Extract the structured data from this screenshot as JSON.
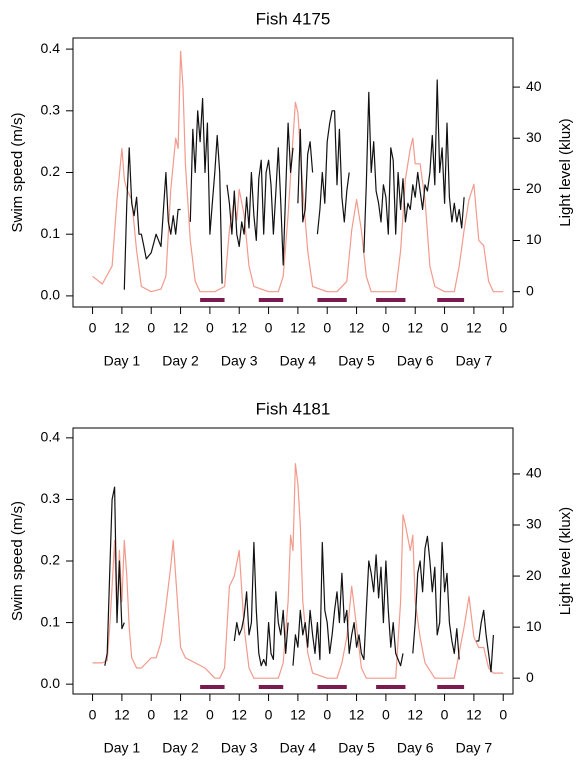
{
  "chart_data": [
    {
      "type": "line",
      "title": "Fish 4175",
      "ylabel": "Swim speed (m/s)",
      "y2label": "Light level (klux)",
      "xlim": [
        -8,
        172
      ],
      "xticks": [
        0,
        12,
        {
          "value": 24,
          "label": "0"
        },
        {
          "value": 36,
          "label": "12"
        },
        {
          "value": 48,
          "label": "0"
        },
        {
          "value": 60,
          "label": "12"
        },
        {
          "value": 72,
          "label": "0"
        },
        {
          "value": 84,
          "label": "12"
        },
        {
          "value": 96,
          "label": "0"
        },
        {
          "value": 108,
          "label": "12"
        },
        {
          "value": 120,
          "label": "0"
        },
        {
          "value": 132,
          "label": "12"
        },
        {
          "value": 144,
          "label": "0"
        },
        {
          "value": 156,
          "label": "12"
        },
        {
          "value": 168,
          "label": "0"
        }
      ],
      "day_ticks": [
        {
          "value": 12,
          "label": "Day 1"
        },
        {
          "value": 36,
          "label": "Day 2"
        },
        {
          "value": 60,
          "label": "Day 3"
        },
        {
          "value": 84,
          "label": "Day 4"
        },
        {
          "value": 108,
          "label": "Day 5"
        },
        {
          "value": 132,
          "label": "Day 6"
        },
        {
          "value": 156,
          "label": "Day 7"
        }
      ],
      "ylim": [
        -0.018,
        0.418
      ],
      "yticks": [
        {
          "value": 0,
          "label": "0.0"
        },
        0.1,
        0.2,
        0.3,
        0.4
      ],
      "y2lim": [
        -3,
        49.6
      ],
      "y2ticks": [
        0,
        10,
        20,
        30,
        40
      ],
      "night_bars": [
        [
          44,
          54
        ],
        [
          68,
          78
        ],
        [
          92,
          104
        ],
        [
          116,
          128
        ],
        [
          141,
          152
        ]
      ],
      "night_color": "#7b1a4e",
      "series": [
        {
          "color": "#f29a8c",
          "axis": "y2",
          "x": [
            0,
            4,
            8,
            10,
            12,
            13,
            14,
            16,
            18,
            20,
            24,
            28,
            30,
            32,
            34,
            35,
            36,
            37,
            38,
            40,
            42,
            44,
            50,
            54,
            56,
            58,
            59,
            60,
            62,
            64,
            66,
            72,
            76,
            78,
            80,
            82,
            83,
            84,
            86,
            88,
            90,
            96,
            100,
            104,
            106,
            108,
            110,
            112,
            114,
            120,
            124,
            126,
            128,
            130,
            131,
            132,
            134,
            136,
            138,
            140,
            144,
            148,
            150,
            152,
            154,
            156,
            158,
            160,
            162,
            164,
            168
          ],
          "values": [
            3,
            1.5,
            5,
            18,
            28,
            22,
            20,
            18,
            8,
            1,
            0,
            0.5,
            3,
            20,
            30,
            28,
            47,
            40,
            25,
            10,
            2,
            0,
            0,
            1,
            12,
            18,
            14,
            20,
            15,
            5,
            1,
            0,
            0,
            3,
            15,
            30,
            37,
            35,
            20,
            8,
            1,
            0,
            0,
            2,
            12,
            18,
            12,
            3,
            0,
            0,
            0,
            8,
            22,
            28,
            30,
            25,
            25,
            18,
            5,
            1,
            0,
            0,
            5,
            12,
            18,
            21,
            10,
            9,
            2,
            0,
            0
          ]
        },
        {
          "color": "#111111",
          "axis": "y",
          "x": [
            13,
            14,
            15,
            16,
            17,
            18,
            19,
            20,
            21,
            22,
            24,
            26,
            28,
            30,
            31,
            32,
            33,
            34,
            35,
            36,
            38,
            40,
            41,
            42,
            43,
            44,
            45,
            46,
            47,
            48,
            49,
            50,
            51,
            52,
            53,
            54,
            55,
            56,
            57,
            58,
            59,
            60,
            61,
            62,
            63,
            64,
            65,
            66,
            67,
            68,
            69,
            70,
            71,
            72,
            73,
            74,
            75,
            76,
            77,
            78,
            79,
            80,
            81,
            82,
            83,
            84,
            85,
            86,
            87,
            88,
            89,
            90,
            91,
            92,
            93,
            94,
            95,
            96,
            97,
            98,
            99,
            100,
            101,
            102,
            103,
            104,
            105,
            106,
            111,
            112,
            113,
            114,
            115,
            116,
            117,
            118,
            119,
            120,
            121,
            122,
            123,
            124,
            125,
            126,
            127,
            128,
            129,
            130,
            131,
            132,
            133,
            134,
            135,
            136,
            137,
            138,
            139,
            140,
            141,
            142,
            143,
            144,
            145,
            146,
            147,
            148,
            149,
            150,
            151,
            152
          ],
          "values": [
            0.01,
            0.15,
            0.24,
            0.15,
            0.13,
            0.16,
            0.1,
            0.1,
            0.08,
            0.06,
            0.07,
            0.1,
            0.08,
            0.2,
            0.12,
            0.1,
            0.13,
            0.1,
            0.14,
            0.14,
            null,
            0.12,
            0.27,
            0.2,
            0.3,
            0.25,
            0.32,
            0.2,
            0.28,
            0.1,
            0.15,
            0.2,
            0.26,
            0.2,
            0.02,
            null,
            0.18,
            0.15,
            0.1,
            0.17,
            0.1,
            0.08,
            0.12,
            0.1,
            0.16,
            0.11,
            0.2,
            0.13,
            0.09,
            0.19,
            0.22,
            0.1,
            0.2,
            0.22,
            0.18,
            0.1,
            0.17,
            0.24,
            0.15,
            0.05,
            0.17,
            0.28,
            0.2,
            0.24,
            null,
            0.15,
            0.27,
            0.12,
            0.14,
            0.23,
            0.25,
            0.2,
            null,
            0.1,
            0.14,
            0.2,
            0.15,
            0.25,
            0.28,
            0.3,
            0.3,
            0.18,
            0.27,
            0.16,
            0.12,
            0.17,
            0.2,
            null,
            0.07,
            0.18,
            0.33,
            0.2,
            0.25,
            0.17,
            0.15,
            0.12,
            0.18,
            0.16,
            0.1,
            0.24,
            0.22,
            0.1,
            0.2,
            0.14,
            0.19,
            0.12,
            0.15,
            0.14,
            0.18,
            0.16,
            0.2,
            0.17,
            0.14,
            0.18,
            0.17,
            0.2,
            0.26,
            0.18,
            0.35,
            0.2,
            0.24,
            0.15,
            0.28,
            0.16,
            0.12,
            0.15,
            0.12,
            0.14,
            0.11,
            0.16
          ]
        }
      ]
    },
    {
      "type": "line",
      "title": "Fish 4181",
      "ylabel": "Swim speed (m/s)",
      "y2label": "Light level (klux)",
      "xlim": [
        -8,
        172
      ],
      "xticks": [
        0,
        12,
        {
          "value": 24,
          "label": "0"
        },
        {
          "value": 36,
          "label": "12"
        },
        {
          "value": 48,
          "label": "0"
        },
        {
          "value": 60,
          "label": "12"
        },
        {
          "value": 72,
          "label": "0"
        },
        {
          "value": 84,
          "label": "12"
        },
        {
          "value": 96,
          "label": "0"
        },
        {
          "value": 108,
          "label": "12"
        },
        {
          "value": 120,
          "label": "0"
        },
        {
          "value": 132,
          "label": "12"
        },
        {
          "value": 144,
          "label": "0"
        },
        {
          "value": 156,
          "label": "12"
        },
        {
          "value": 168,
          "label": "0"
        }
      ],
      "day_ticks": [
        {
          "value": 12,
          "label": "Day 1"
        },
        {
          "value": 36,
          "label": "Day 2"
        },
        {
          "value": 60,
          "label": "Day 3"
        },
        {
          "value": 84,
          "label": "Day 4"
        },
        {
          "value": 108,
          "label": "Day 5"
        },
        {
          "value": 132,
          "label": "Day 6"
        },
        {
          "value": 156,
          "label": "Day 7"
        }
      ],
      "ylim": [
        -0.016,
        0.416
      ],
      "yticks": [
        {
          "value": 0,
          "label": "0.0"
        },
        0.1,
        0.2,
        0.3,
        0.4
      ],
      "y2lim": [
        -3.1,
        49
      ],
      "y2ticks": [
        0,
        10,
        20,
        30,
        40
      ],
      "night_bars": [
        [
          44,
          54
        ],
        [
          68,
          78
        ],
        [
          92,
          104
        ],
        [
          116,
          128
        ],
        [
          141,
          152
        ]
      ],
      "night_color": "#7b1a4e",
      "series": [
        {
          "color": "#f29a8c",
          "axis": "y2",
          "x": [
            0,
            4,
            6,
            7,
            8,
            9,
            10,
            11,
            12,
            13,
            14,
            15,
            16,
            18,
            20,
            24,
            26,
            28,
            30,
            32,
            33,
            34,
            36,
            38,
            42,
            46,
            48,
            50,
            52,
            54,
            56,
            58,
            60,
            62,
            64,
            66,
            72,
            76,
            78,
            80,
            81,
            82,
            83,
            84,
            85,
            86,
            88,
            90,
            96,
            100,
            102,
            104,
            106,
            108,
            110,
            112,
            120,
            124,
            126,
            127,
            128,
            130,
            131,
            132,
            134,
            136,
            140,
            148,
            150,
            152,
            154,
            156,
            158,
            160,
            162,
            164,
            168
          ],
          "values": [
            3,
            3,
            3.5,
            10,
            18,
            27,
            12,
            25,
            15,
            27,
            20,
            10,
            4,
            2,
            2,
            4,
            4,
            7,
            14,
            22,
            27,
            20,
            6,
            4,
            3,
            2,
            1,
            0,
            0,
            2,
            18,
            20,
            25,
            10,
            2,
            0,
            0,
            0,
            3,
            15,
            28,
            25,
            42,
            38,
            30,
            15,
            5,
            1,
            0,
            0,
            3,
            8,
            18,
            10,
            2,
            0,
            0,
            0,
            15,
            32,
            30,
            25,
            28,
            15,
            8,
            3,
            0,
            0,
            5,
            10,
            16,
            8,
            6,
            6,
            2,
            1,
            1
          ]
        },
        {
          "color": "#111111",
          "axis": "y",
          "x": [
            5,
            6,
            7,
            8,
            9,
            10,
            11,
            12,
            13,
            14,
            58,
            59,
            60,
            61,
            62,
            63,
            64,
            65,
            66,
            67,
            68,
            69,
            70,
            71,
            72,
            73,
            74,
            75,
            76,
            77,
            78,
            79,
            80,
            81,
            82,
            83,
            84,
            85,
            86,
            87,
            88,
            89,
            90,
            91,
            92,
            93,
            94,
            95,
            96,
            97,
            98,
            99,
            100,
            101,
            102,
            103,
            104,
            105,
            106,
            107,
            108,
            109,
            110,
            111,
            112,
            113,
            114,
            115,
            116,
            117,
            118,
            119,
            120,
            121,
            122,
            123,
            124,
            125,
            126,
            127,
            128,
            131,
            132,
            133,
            134,
            135,
            136,
            137,
            138,
            139,
            140,
            141,
            142,
            143,
            144,
            145,
            146,
            147,
            148,
            149,
            150,
            151,
            157,
            158,
            159,
            160,
            161,
            162,
            163,
            164
          ],
          "values": [
            0.03,
            0.05,
            0.18,
            0.3,
            0.32,
            0.1,
            0.2,
            0.09,
            0.1,
            null,
            0.07,
            0.1,
            0.08,
            0.09,
            0.11,
            0.15,
            0.08,
            0.1,
            0.23,
            0.12,
            0.05,
            0.03,
            0.04,
            0.03,
            0.1,
            0.05,
            0.04,
            0.15,
            0.1,
            0.08,
            0.12,
            0.05,
            0.1,
            null,
            0.03,
            0.08,
            0.06,
            0.12,
            0.08,
            0.1,
            0.06,
            0.12,
            0.08,
            0.05,
            0.1,
            0.04,
            0.23,
            0.12,
            0.1,
            0.05,
            0.08,
            0.12,
            0.15,
            0.1,
            0.18,
            0.1,
            0.12,
            0.05,
            0.08,
            0.1,
            0.06,
            0.08,
            0.05,
            0.04,
            0.12,
            0.2,
            0.18,
            0.15,
            0.21,
            0.14,
            0.19,
            0.1,
            0.2,
            0.12,
            0.06,
            0.1,
            0.05,
            0.04,
            0.03,
            0.05,
            null,
            0.05,
            0.1,
            0.18,
            0.2,
            0.15,
            0.22,
            0.24,
            0.2,
            0.15,
            0.19,
            0.08,
            0.1,
            0.23,
            0.15,
            0.18,
            0.1,
            0.07,
            0.05,
            0.09,
            0.04,
            null,
            0.07,
            0.07,
            0.1,
            0.12,
            0.08,
            0.05,
            0.02,
            0.08
          ]
        }
      ]
    }
  ]
}
